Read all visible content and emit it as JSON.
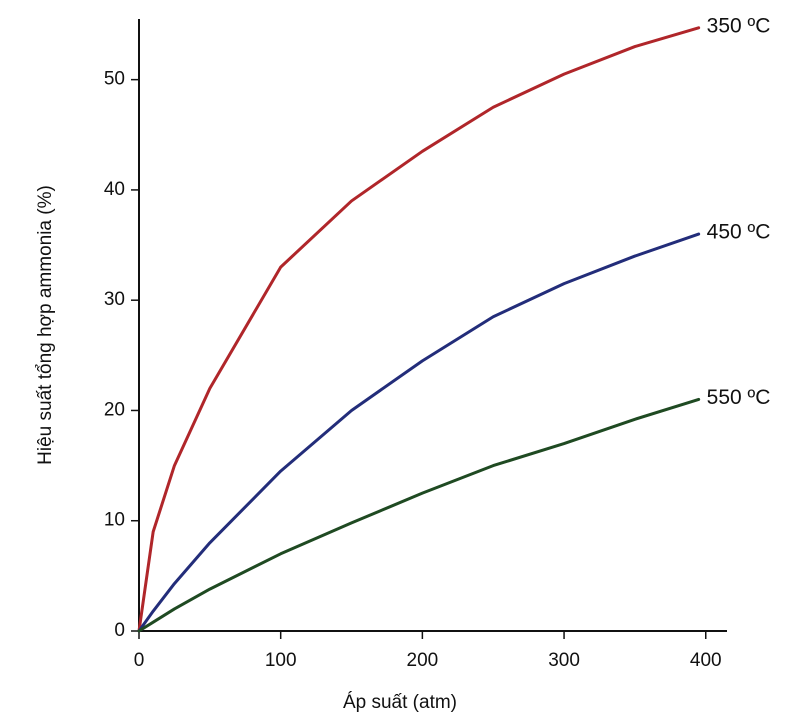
{
  "chart_data": {
    "type": "line",
    "x_label": "Áp suất (atm)",
    "y_label": "Hiệu suất tổng hợp ammonia (%)",
    "x": [
      0,
      10,
      25,
      50,
      100,
      150,
      200,
      250,
      300,
      350,
      395
    ],
    "series": [
      {
        "name": "350 ºC",
        "color": "#b0262a",
        "values": [
          0,
          9,
          15,
          22,
          33,
          39,
          43.5,
          47.5,
          50.5,
          53,
          54.7
        ]
      },
      {
        "name": "450 ºC",
        "color": "#232d7a",
        "values": [
          0,
          1.8,
          4.3,
          8,
          14.5,
          20,
          24.5,
          28.5,
          31.5,
          34,
          36
        ]
      },
      {
        "name": "550 ºC",
        "color": "#1f4a22",
        "values": [
          0,
          0.8,
          2,
          3.8,
          7,
          9.8,
          12.5,
          15,
          17,
          19.2,
          21
        ]
      }
    ],
    "xlim": [
      0,
      415
    ],
    "ylim": [
      0,
      55.5
    ],
    "xticks": [
      0,
      100,
      200,
      300,
      400
    ],
    "yticks": [
      0,
      10,
      20,
      30,
      40,
      50
    ]
  }
}
